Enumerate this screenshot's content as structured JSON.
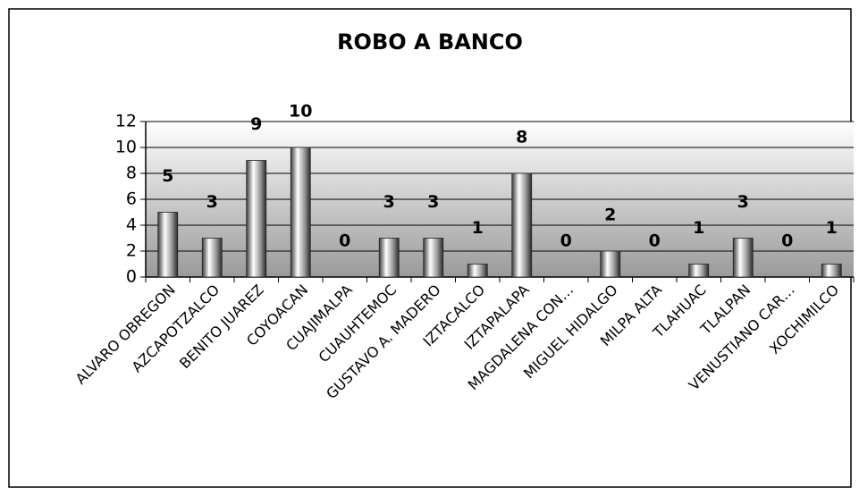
{
  "chart_data": {
    "type": "bar",
    "title": "ROBO A BANCO",
    "categories": [
      "ALVARO OBREGON",
      "AZCAPOTZALCO",
      "BENITO JUAREZ",
      "COYOACAN",
      "CUAJIMALPA",
      "CUAUHTEMOC",
      "GUSTAVO A. MADERO",
      "IZTACALCO",
      "IZTAPALAPA",
      "MAGDALENA CON…",
      "MIGUEL HIDALGO",
      "MILPA ALTA",
      "TLAHUAC",
      "TLALPAN",
      "VENUSTIANO CAR…",
      "XOCHIMILCO"
    ],
    "values": [
      5,
      3,
      9,
      10,
      0,
      3,
      3,
      1,
      8,
      0,
      2,
      0,
      1,
      3,
      0,
      1
    ],
    "color": "#888888",
    "ylim": [
      0,
      12
    ],
    "yticks": [
      0,
      2,
      4,
      6,
      8,
      10,
      12
    ],
    "grid": true
  }
}
